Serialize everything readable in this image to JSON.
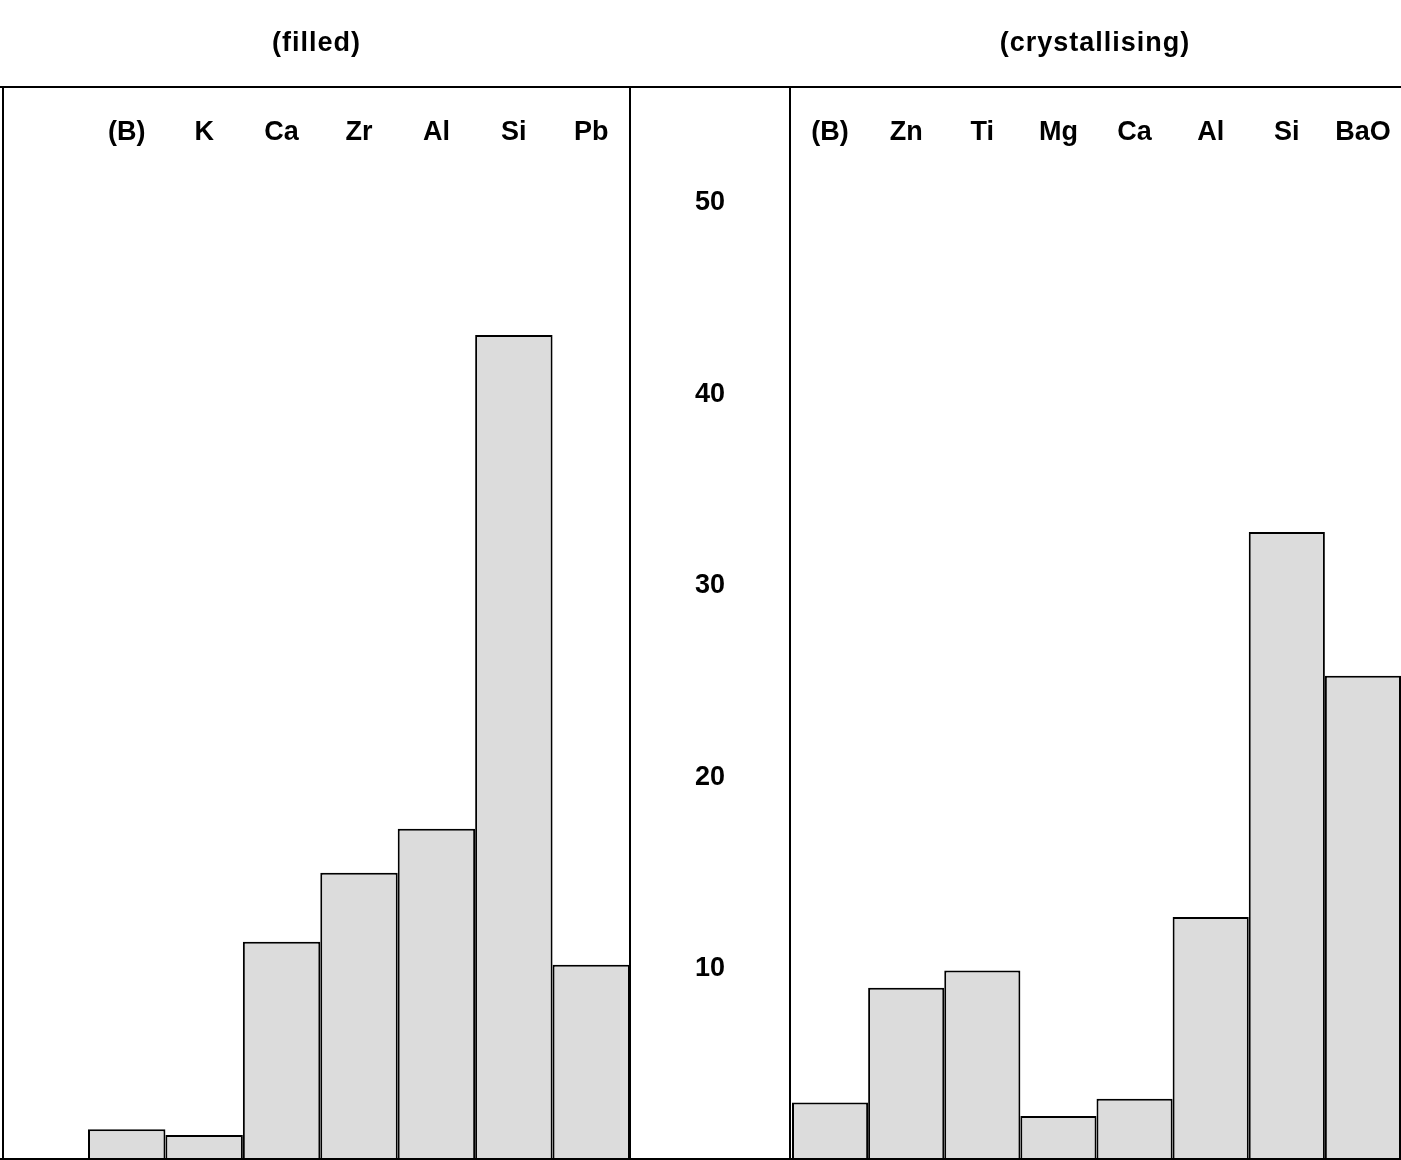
{
  "chart_data": [
    {
      "type": "bar",
      "title": "(filled)",
      "categories": [
        "(B)",
        "K",
        "Ca",
        "Zr",
        "Al",
        "Si",
        "Pb"
      ],
      "values": [
        1.6,
        1.3,
        11.4,
        15.0,
        17.3,
        43.1,
        10.2
      ],
      "color": "#dcdcdc",
      "ylim": [
        0,
        56
      ],
      "yticks": [
        10,
        20,
        30,
        40,
        50
      ]
    },
    {
      "type": "bar",
      "title": "(crystallising)",
      "categories": [
        "(B)",
        "Zn",
        "Ti",
        "Mg",
        "Ca",
        "Al",
        "Si",
        "BaO"
      ],
      "values": [
        3.0,
        9.0,
        9.9,
        2.3,
        3.2,
        12.7,
        32.8,
        25.3
      ],
      "color": "#dcdcdc",
      "ylim": [
        0,
        56
      ],
      "yticks": [
        10,
        20,
        30,
        40,
        50
      ],
      "tick_labels": "x"
    }
  ]
}
